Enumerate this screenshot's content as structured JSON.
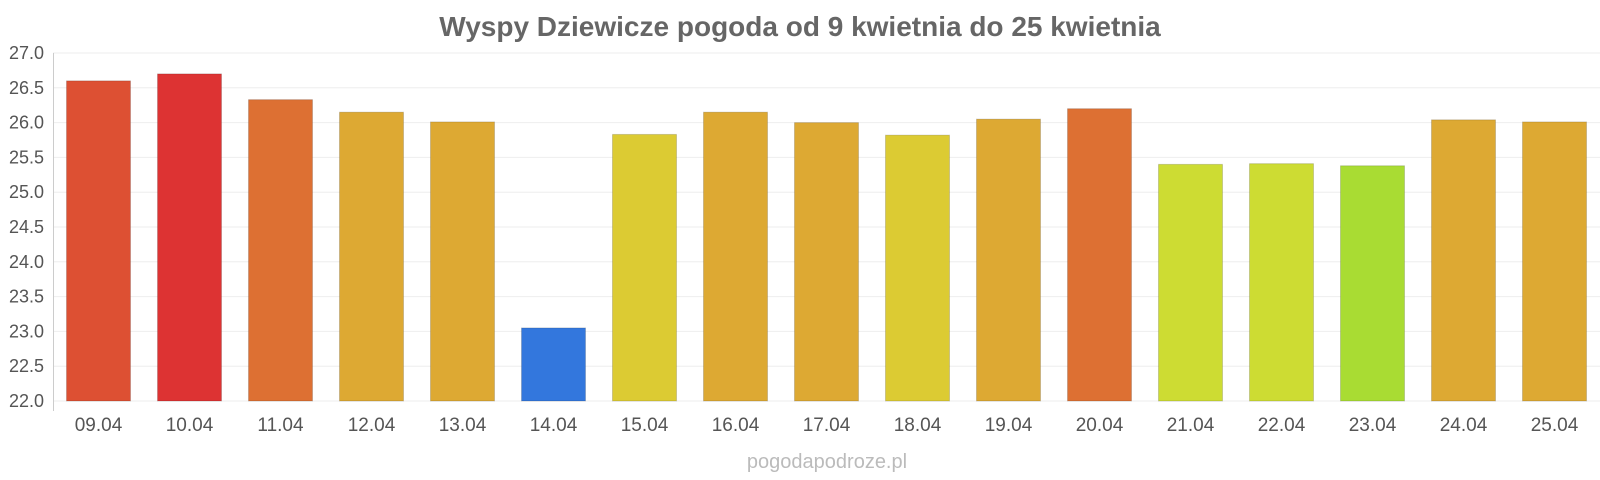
{
  "chart_data": {
    "type": "bar",
    "title": "Wyspy Dziewicze pogoda od 9 kwietnia do 25 kwietnia",
    "xlabel": "",
    "ylabel": "",
    "categories": [
      "09.04",
      "10.04",
      "11.04",
      "12.04",
      "13.04",
      "14.04",
      "15.04",
      "16.04",
      "17.04",
      "18.04",
      "19.04",
      "20.04",
      "21.04",
      "22.04",
      "23.04",
      "24.04",
      "25.04"
    ],
    "values": [
      26.6,
      26.7,
      26.33,
      26.15,
      26.01,
      23.05,
      25.83,
      26.15,
      26.0,
      25.82,
      26.05,
      26.2,
      25.4,
      25.41,
      25.38,
      26.04,
      26.01
    ],
    "colors": [
      "#dd5033",
      "#dd3333",
      "#dd7033",
      "#dda933",
      "#dda933",
      "#3377dd",
      "#dccb33",
      "#dda933",
      "#dda933",
      "#dccb33",
      "#dda933",
      "#dd7033",
      "#cddc33",
      "#cddc33",
      "#a9dc33",
      "#dda933",
      "#dda933"
    ],
    "ylim": [
      22.0,
      27.0
    ],
    "yticks": [
      "22.0",
      "22.5",
      "23.0",
      "23.5",
      "24.0",
      "24.5",
      "25.0",
      "25.5",
      "26.0",
      "26.5",
      "27.0"
    ],
    "grid": true,
    "legend": "none"
  },
  "watermark": "pogodapodroze.pl"
}
